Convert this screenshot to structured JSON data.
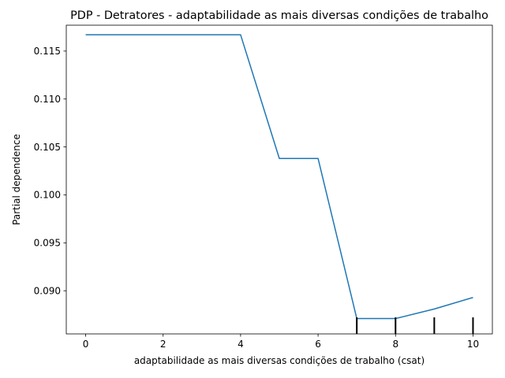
{
  "chart_data": {
    "type": "line",
    "title": "PDP - Detratores - adaptabilidade as mais diversas condições de trabalho",
    "xlabel": "adaptabilidade as mais diversas condições de trabalho (csat)",
    "ylabel": "Partial dependence",
    "xlim": [
      -0.5,
      10.5
    ],
    "ylim": [
      0.0855,
      0.1177
    ],
    "x_ticks": [
      0,
      2,
      4,
      6,
      8,
      10
    ],
    "x_tick_labels": [
      "0",
      "2",
      "4",
      "6",
      "8",
      "10"
    ],
    "y_ticks": [
      0.09,
      0.095,
      0.1,
      0.105,
      0.11,
      0.115
    ],
    "y_tick_labels": [
      "0.090",
      "0.095",
      "0.100",
      "0.105",
      "0.110",
      "0.115"
    ],
    "grid": false,
    "series": [
      {
        "color": "#1f77b4",
        "x": [
          0,
          4,
          5,
          6,
          7,
          8,
          9,
          10
        ],
        "y": [
          0.1167,
          0.1167,
          0.1038,
          0.1038,
          0.0871,
          0.0871,
          0.0881,
          0.0893
        ]
      }
    ],
    "rug_deciles": [
      7,
      8,
      9,
      10
    ]
  }
}
